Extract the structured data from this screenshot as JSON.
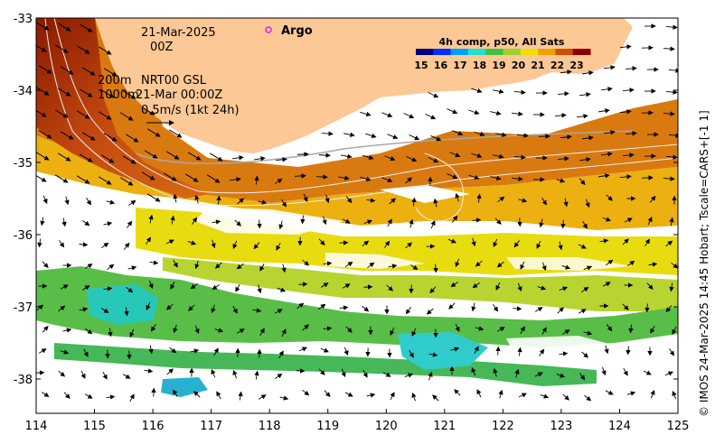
{
  "map": {
    "date_line": "21-Mar-2025",
    "hour_line": "00Z",
    "depth_line_1": "200m",
    "depth_line_2": "1000m",
    "source_line_1": "NRT00 GSL",
    "source_line_2": "21-Mar 00:00Z",
    "scale_label": "0.5m/s (1kt 24h)",
    "argo_label": "Argo",
    "credit": "© IMOS 24-Mar-2025 14:45 Hobart; Tscale=CARS+[-1 1]",
    "land_color": "#fcc896",
    "argo_color": "#e020e0",
    "x_ticks": [
      "114",
      "115",
      "116",
      "117",
      "118",
      "119",
      "120",
      "121",
      "122",
      "123",
      "124",
      "125"
    ],
    "y_ticks": [
      "-33",
      "-34",
      "-35",
      "-36",
      "-37",
      "-38"
    ]
  },
  "colorbar": {
    "title": "4h comp, p50, All Sats",
    "labels": [
      "15",
      "16",
      "17",
      "18",
      "19",
      "20",
      "21",
      "22",
      "23"
    ],
    "colors": [
      "#00007f",
      "#0030ff",
      "#00a0ff",
      "#20e0d0",
      "#40c040",
      "#a0d030",
      "#f0e000",
      "#f0a000",
      "#d05000",
      "#900000"
    ]
  }
}
